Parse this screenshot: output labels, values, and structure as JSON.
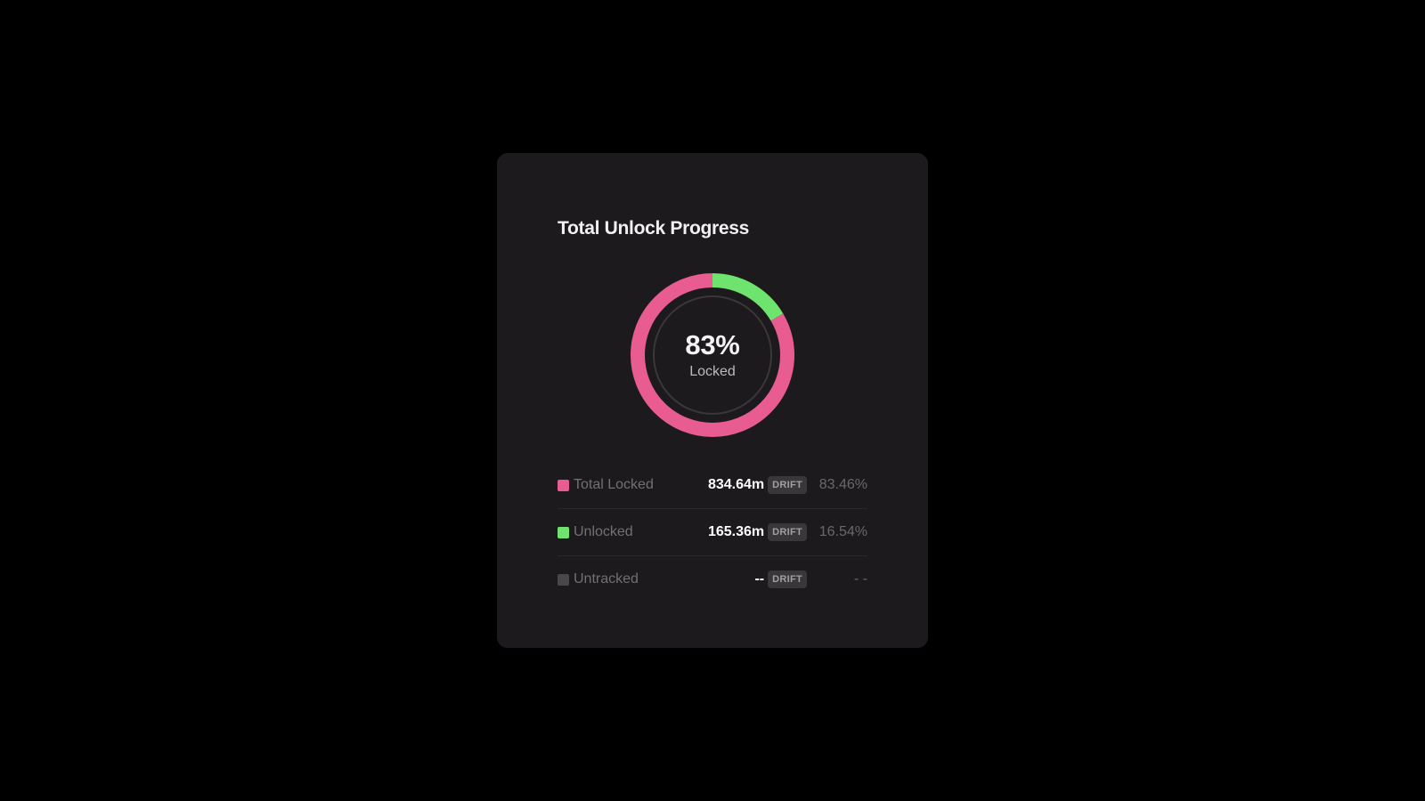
{
  "card": {
    "title": "Total Unlock Progress"
  },
  "donut": {
    "center_value": "83%",
    "center_label": "Locked",
    "segments": [
      {
        "name": "Total Locked",
        "fraction": 0.8346,
        "color": "#e95c92"
      },
      {
        "name": "Unlocked",
        "fraction": 0.1654,
        "color": "#6ee36e"
      }
    ],
    "track_color": "#3a373a"
  },
  "legend": [
    {
      "label": "Total Locked",
      "amount": "834.64m",
      "token": "DRIFT",
      "percent": "83.46%",
      "color": "#e95c92"
    },
    {
      "label": "Unlocked",
      "amount": "165.36m",
      "token": "DRIFT",
      "percent": "16.54%",
      "color": "#6ee36e"
    },
    {
      "label": "Untracked",
      "amount": "--",
      "token": "DRIFT",
      "percent": "- -",
      "color": "#4a474a"
    }
  ]
}
